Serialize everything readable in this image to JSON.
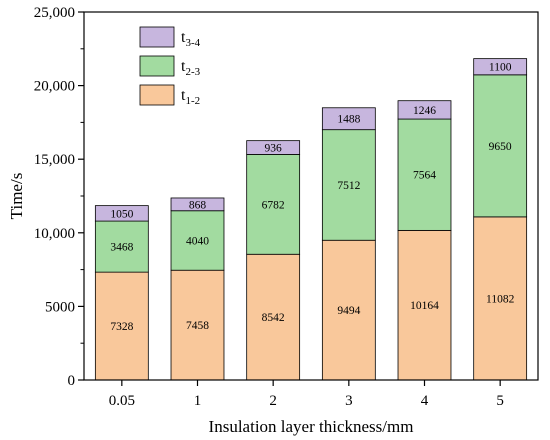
{
  "chart_data": {
    "type": "bar",
    "stacked": true,
    "title": "",
    "xlabel": "Insulation layer thickness/mm",
    "ylabel": "Time/s",
    "categories": [
      "0.05",
      "1",
      "2",
      "3",
      "4",
      "5"
    ],
    "ylim": [
      0,
      25000
    ],
    "yticks": [
      0,
      5000,
      10000,
      15000,
      20000,
      25000
    ],
    "ytick_labels": [
      "0",
      "5000",
      "10,000",
      "15,000",
      "20,000",
      "25,000"
    ],
    "xtick_labels": [
      "0.05",
      "1",
      "2",
      "3",
      "4",
      "5"
    ],
    "grid": false,
    "legend_position": "top-left",
    "series": [
      {
        "name": "t1-2",
        "label_main": "t",
        "label_sub": "1-2",
        "color": "#F9C89B",
        "values": [
          7328,
          7458,
          8542,
          9494,
          10164,
          11082
        ]
      },
      {
        "name": "t2-3",
        "label_main": "t",
        "label_sub": "2-3",
        "color": "#A2DBA0",
        "values": [
          3468,
          4040,
          6782,
          7512,
          7564,
          9650
        ]
      },
      {
        "name": "t3-4",
        "label_main": "t",
        "label_sub": "3-4",
        "color": "#C7B6DE",
        "values": [
          1050,
          868,
          936,
          1488,
          1246,
          1100
        ]
      }
    ]
  }
}
